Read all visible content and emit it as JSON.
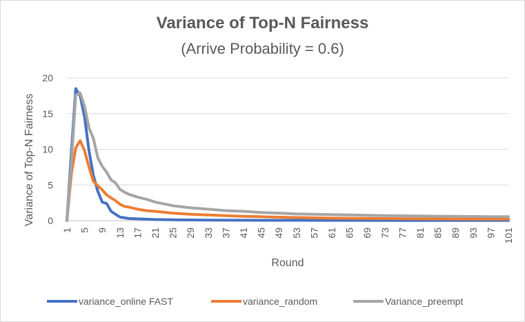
{
  "chart_data": {
    "type": "line",
    "title": "Variance of Top-N Fairness",
    "subtitle": "(Arrive Probability = 0.6)",
    "xlabel": "Round",
    "ylabel": "Variance of Top-N Fairness",
    "xlim": [
      1,
      101
    ],
    "ylim": [
      0,
      20
    ],
    "y_ticks": [
      0,
      5,
      10,
      15,
      20
    ],
    "x_ticks": [
      1,
      5,
      9,
      13,
      17,
      21,
      25,
      29,
      33,
      37,
      41,
      45,
      49,
      53,
      57,
      61,
      65,
      69,
      73,
      77,
      81,
      85,
      89,
      93,
      97,
      101
    ],
    "grid": "horizontal",
    "legend_position": "bottom",
    "series": [
      {
        "name": "variance_online FAST",
        "color": "#4472c4",
        "x": [
          1,
          2,
          3,
          4,
          5,
          6,
          7,
          8,
          9,
          10,
          11,
          12,
          13,
          14,
          15,
          17,
          19,
          21,
          25,
          29,
          33,
          41,
          51,
          61,
          71,
          81,
          91,
          101
        ],
        "y": [
          0,
          9.5,
          18.5,
          17.5,
          14.5,
          9.8,
          6.3,
          4.1,
          2.6,
          2.4,
          1.3,
          0.9,
          0.5,
          0.4,
          0.3,
          0.25,
          0.2,
          0.15,
          0.12,
          0.1,
          0.08,
          0.06,
          0.05,
          0.04,
          0.03,
          0.03,
          0.02,
          0.02
        ]
      },
      {
        "name": "variance_random",
        "color": "#ed7d31",
        "x": [
          1,
          2,
          3,
          4,
          5,
          6,
          7,
          8,
          9,
          10,
          11,
          12,
          13,
          14,
          15,
          17,
          19,
          21,
          25,
          29,
          33,
          37,
          41,
          45,
          51,
          61,
          71,
          81,
          91,
          101
        ],
        "y": [
          0,
          6.5,
          10.2,
          11.2,
          9.8,
          7.5,
          5.5,
          4.9,
          4.3,
          3.6,
          3.2,
          2.8,
          2.3,
          2.0,
          1.9,
          1.6,
          1.4,
          1.3,
          1.05,
          0.9,
          0.8,
          0.7,
          0.6,
          0.55,
          0.45,
          0.35,
          0.3,
          0.25,
          0.22,
          0.2
        ]
      },
      {
        "name": "Variance_preempt",
        "color": "#a5a5a5",
        "x": [
          1,
          2,
          3,
          4,
          5,
          6,
          7,
          8,
          9,
          10,
          11,
          12,
          13,
          14,
          15,
          17,
          19,
          21,
          25,
          29,
          33,
          37,
          41,
          45,
          49,
          53,
          57,
          61,
          65,
          69,
          73,
          77,
          81,
          85,
          89,
          93,
          97,
          101
        ],
        "y": [
          0,
          8,
          17.6,
          17.9,
          16,
          13,
          11.5,
          8.8,
          7.6,
          6.8,
          5.7,
          5.3,
          4.4,
          4.0,
          3.7,
          3.3,
          3.0,
          2.6,
          2.1,
          1.8,
          1.6,
          1.4,
          1.3,
          1.15,
          1.05,
          0.95,
          0.9,
          0.85,
          0.8,
          0.75,
          0.7,
          0.68,
          0.65,
          0.62,
          0.6,
          0.58,
          0.56,
          0.55
        ]
      }
    ]
  }
}
